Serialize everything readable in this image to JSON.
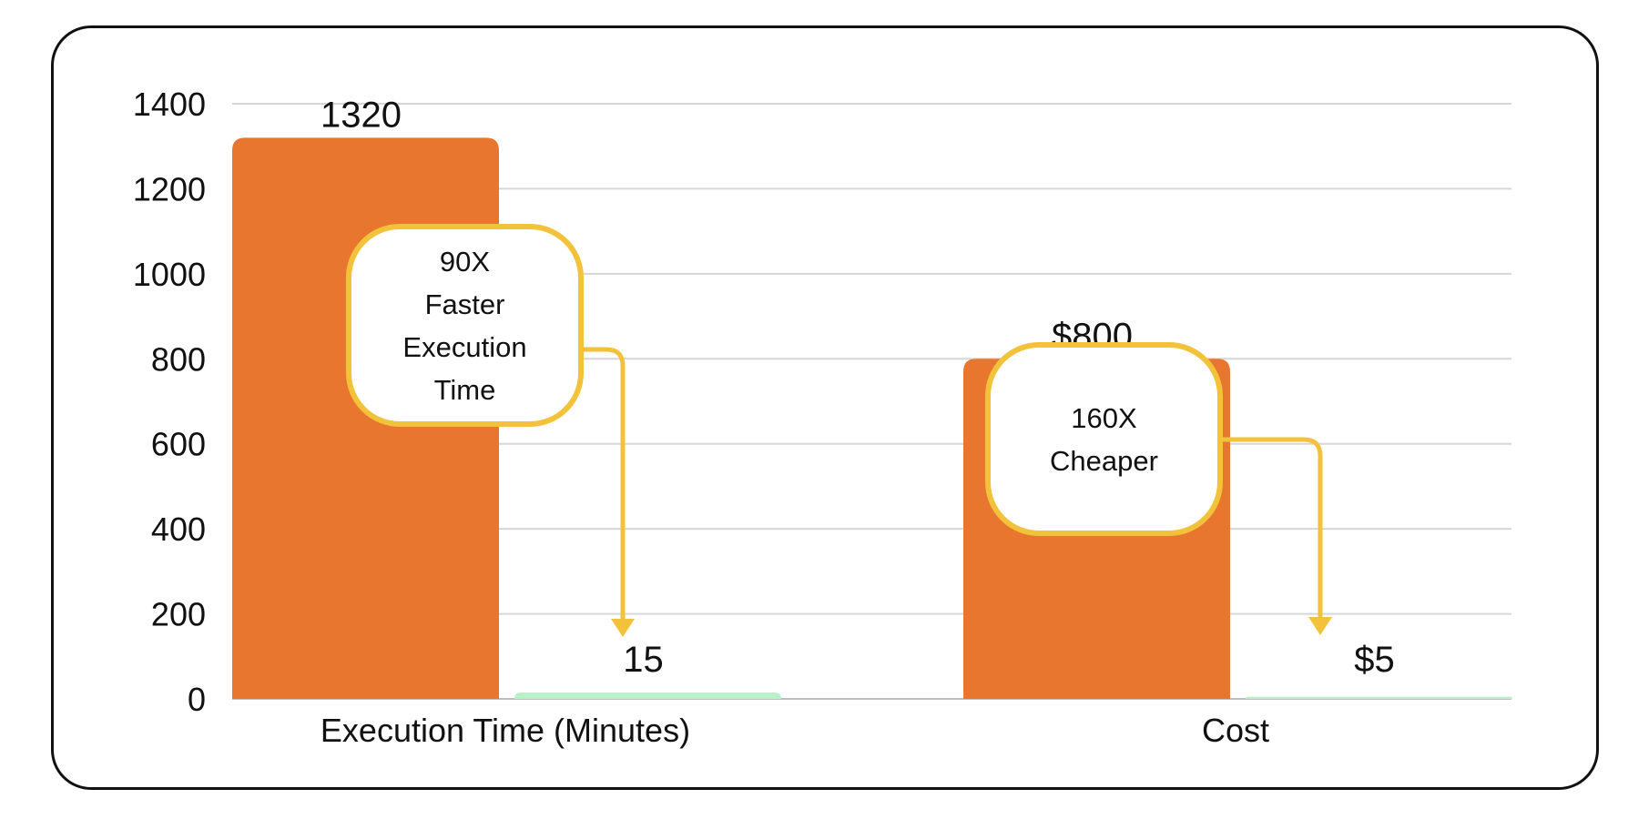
{
  "chart_data": {
    "type": "bar",
    "categories": [
      "Execution Time (Minutes)",
      "Cost"
    ],
    "series": [
      {
        "values": [
          1320,
          800
        ],
        "labels": [
          "1320",
          "$800"
        ]
      },
      {
        "values": [
          15,
          5
        ],
        "labels": [
          "15",
          "$5"
        ]
      }
    ],
    "ylim": [
      0,
      1400
    ],
    "yticks": [
      0,
      200,
      400,
      600,
      800,
      1000,
      1200,
      1400
    ],
    "grid": true,
    "callouts": [
      {
        "lines": [
          "90X",
          "Faster",
          "Execution",
          "Time"
        ]
      },
      {
        "lines": [
          "160X",
          "Cheaper"
        ]
      }
    ]
  },
  "colors": {
    "baseline_bar": "#E8762E",
    "improved_bar": "#B9F2C8",
    "callout_stroke": "#F2C23A",
    "gridline": "#D6D6D6",
    "frame": "#111111"
  }
}
